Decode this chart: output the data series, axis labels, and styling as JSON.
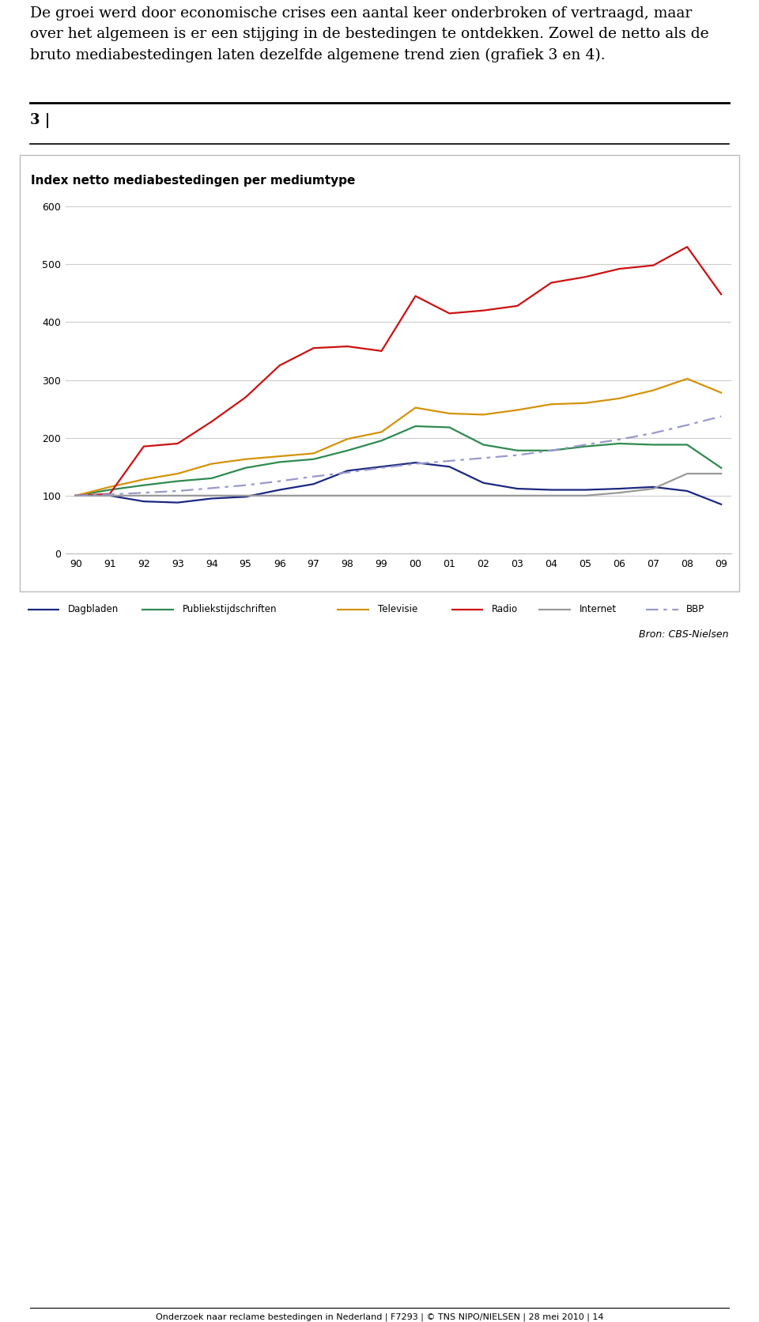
{
  "title": "Index netto mediabestedingen per mediumtype",
  "year_labels": [
    "90",
    "91",
    "92",
    "93",
    "94",
    "95",
    "96",
    "97",
    "98",
    "99",
    "00",
    "01",
    "02",
    "03",
    "04",
    "05",
    "06",
    "07",
    "08",
    "09"
  ],
  "dagbladen": [
    100,
    100,
    90,
    88,
    95,
    98,
    110,
    120,
    143,
    150,
    157,
    150,
    122,
    112,
    110,
    110,
    112,
    115,
    108,
    85
  ],
  "publiekstijdschriften": [
    100,
    110,
    118,
    125,
    130,
    148,
    158,
    163,
    178,
    195,
    220,
    218,
    188,
    178,
    178,
    185,
    190,
    188,
    188,
    148
  ],
  "televisie": [
    100,
    115,
    128,
    138,
    155,
    163,
    168,
    173,
    198,
    210,
    252,
    242,
    240,
    248,
    258,
    260,
    268,
    282,
    302,
    278
  ],
  "radio": [
    100,
    103,
    185,
    190,
    228,
    270,
    325,
    355,
    358,
    350,
    445,
    415,
    420,
    428,
    468,
    478,
    492,
    498,
    530,
    448
  ],
  "internet": [
    100,
    100,
    100,
    100,
    100,
    100,
    100,
    100,
    100,
    100,
    100,
    100,
    100,
    100,
    100,
    100,
    105,
    112,
    138,
    138
  ],
  "bbp": [
    100,
    102,
    105,
    108,
    113,
    118,
    125,
    133,
    140,
    148,
    155,
    160,
    165,
    170,
    178,
    188,
    197,
    208,
    222,
    237
  ],
  "dagbladen_color": "#1a2880",
  "publiekstijdschriften_color": "#2d8a4e",
  "televisie_color": "#d4920a",
  "radio_color": "#cc1111",
  "internet_color": "#999999",
  "bbp_color": "#9999cc",
  "ylim": [
    0,
    600
  ],
  "yticks": [
    0,
    100,
    200,
    300,
    400,
    500,
    600
  ],
  "source_text": "Bron: CBS-Nielsen",
  "page_label": "3 |",
  "footer_text": "Onderzoek naar reclame bestedingen in Nederland | F7293 | © TNS NIPO/NIELSEN | 28 mei 2010 | 14",
  "header_line1": "De groei werd door economische crises een aantal keer onderbroken of vertraagd, maar",
  "header_line2": "over het algemeen is er een stijging in de bestedingen te ontdekken. Zowel de netto als de",
  "header_line3": "bruto mediabestedingen laten dezelfde algemene trend zien (grafiek 3 en 4)."
}
